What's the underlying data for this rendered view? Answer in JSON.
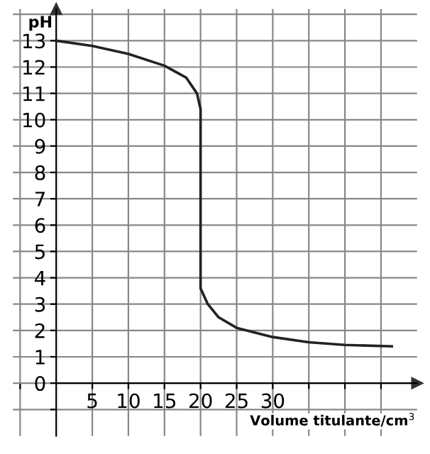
{
  "chart_data": {
    "type": "line",
    "xlabel": "Volume titulante/cm$^{3}$",
    "ylabel": "pH",
    "x": [
      0,
      5,
      10,
      15,
      18,
      19.5,
      20,
      20,
      21,
      22.5,
      25,
      30,
      35,
      40,
      46.5
    ],
    "series": [
      {
        "color": "#222222",
        "values": [
          13,
          12.8,
          12.5,
          12.05,
          11.6,
          11,
          10.4,
          3.6,
          3.0,
          2.5,
          2.1,
          1.75,
          1.55,
          1.45,
          1.4
        ]
      }
    ],
    "xlim": [
      -6,
      50
    ],
    "ylim": [
      -2,
      14.2
    ],
    "xticks": [
      {
        "value": -5,
        "label": null
      },
      5,
      10,
      15,
      20,
      25,
      30,
      {
        "value": 35,
        "label": null
      },
      {
        "value": 40,
        "label": null
      },
      {
        "value": 45,
        "label": null
      }
    ],
    "yticks": [
      {
        "value": -1,
        "label": null
      },
      0,
      1,
      2,
      3,
      4,
      5,
      6,
      7,
      8,
      9,
      10,
      11,
      12,
      13,
      {
        "value": 14,
        "label": null
      }
    ],
    "grid": true,
    "marker": "none",
    "line_style": "solid"
  }
}
